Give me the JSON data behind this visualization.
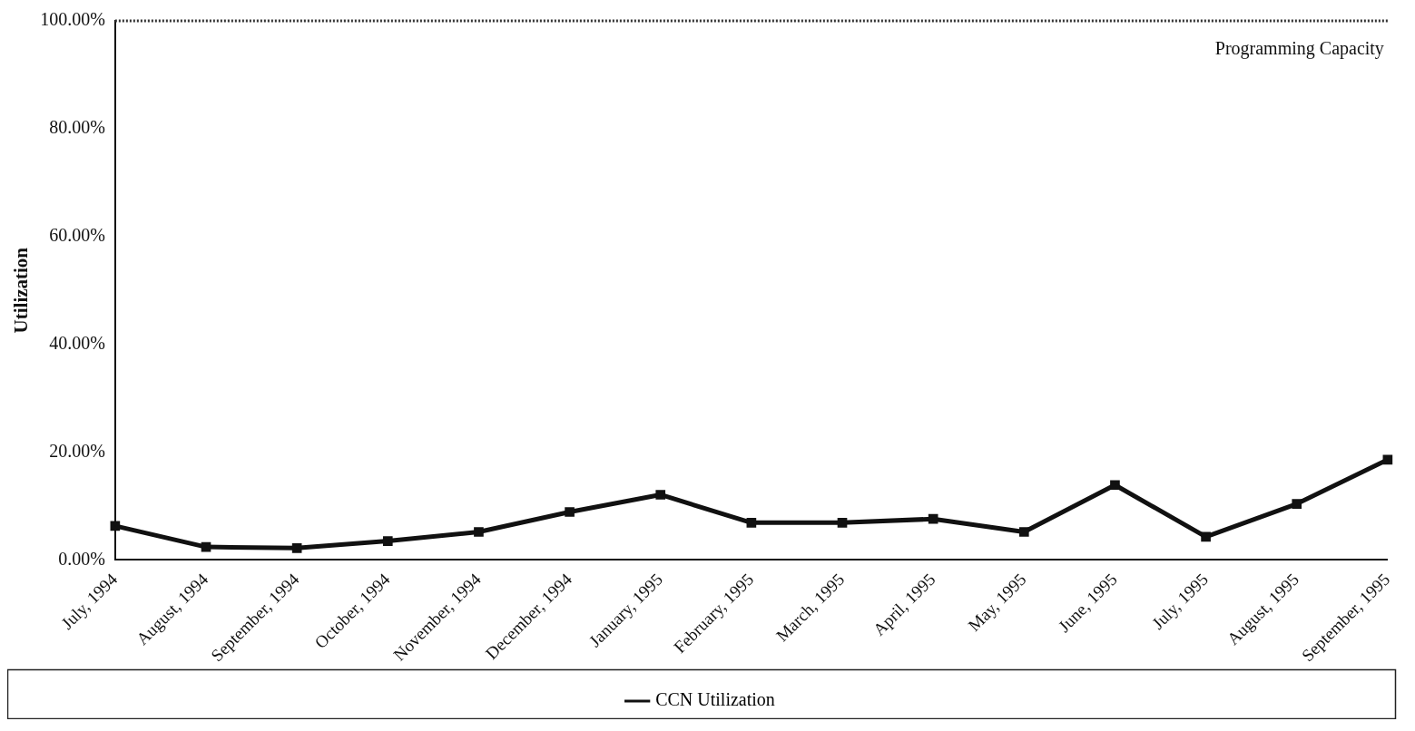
{
  "chart_data": {
    "type": "line",
    "ylabel": "Utilization",
    "categories": [
      "July, 1994",
      "August, 1994",
      "September, 1994",
      "October, 1994",
      "November, 1994",
      "December, 1994",
      "January, 1995",
      "February, 1995",
      "March, 1995",
      "April, 1995",
      "May, 1995",
      "June, 1995",
      "July, 1995",
      "August, 1995",
      "September, 1995"
    ],
    "series": [
      {
        "name": "CCN Utilization",
        "color": "#111111",
        "values": [
          6.3,
          2.4,
          2.2,
          3.5,
          5.2,
          8.9,
          12.1,
          6.9,
          6.9,
          7.6,
          5.2,
          13.9,
          4.3,
          10.4,
          18.6
        ]
      }
    ],
    "ylim": [
      0,
      100
    ],
    "yticks": [
      {
        "value": 0,
        "label": "0.00%"
      },
      {
        "value": 20,
        "label": "20.00%"
      },
      {
        "value": 40,
        "label": "40.00%"
      },
      {
        "value": 60,
        "label": "60.00%"
      },
      {
        "value": 80,
        "label": "80.00%"
      },
      {
        "value": 100,
        "label": "100.00%"
      }
    ],
    "ref_lines": [
      {
        "axis": "y",
        "value": 100,
        "label": "Programming Capacity",
        "color": "#333333",
        "line_style": "dotted"
      }
    ],
    "grid": false,
    "legend": "bottom",
    "marker": "square",
    "line_style": "solid"
  }
}
